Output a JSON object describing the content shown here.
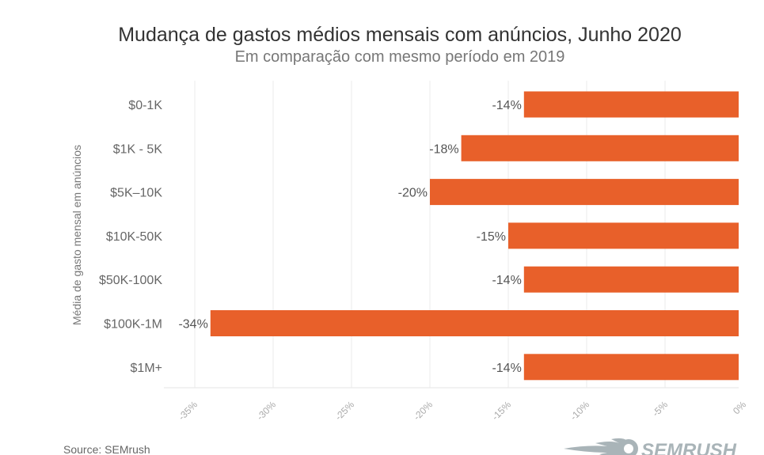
{
  "chart_data": {
    "type": "bar",
    "orientation": "horizontal",
    "title": "Mudança de gastos médios mensais com anúncios, Junho 2020",
    "subtitle": "Em comparação com mesmo período em 2019",
    "ylabel": "Média de gasto mensal em anúncios",
    "xlabel": "",
    "categories": [
      "$0-1K",
      "$1K - 5K",
      "$5K–10K",
      "$10K-50K",
      "$50K-100K",
      "$100K-1M",
      "$1M+"
    ],
    "values": [
      -14,
      -18,
      -20,
      -15,
      -14,
      -34,
      -14
    ],
    "data_labels": [
      "-14%",
      "-18%",
      "-20%",
      "-15%",
      "-14%",
      "-34%",
      "-14%"
    ],
    "xticks": [
      -35,
      -30,
      -25,
      -20,
      -15,
      -10,
      -5,
      0
    ],
    "xtick_labels": [
      "-35%",
      "-30%",
      "-25%",
      "-20%",
      "-15%",
      "-10%",
      "-5%",
      "0%"
    ],
    "xlim": [
      -37,
      0
    ],
    "grid": true,
    "bar_color": "#E8602A"
  },
  "footer": {
    "source": "Source: SEMrush",
    "logo_text": "SEMRUSH"
  }
}
